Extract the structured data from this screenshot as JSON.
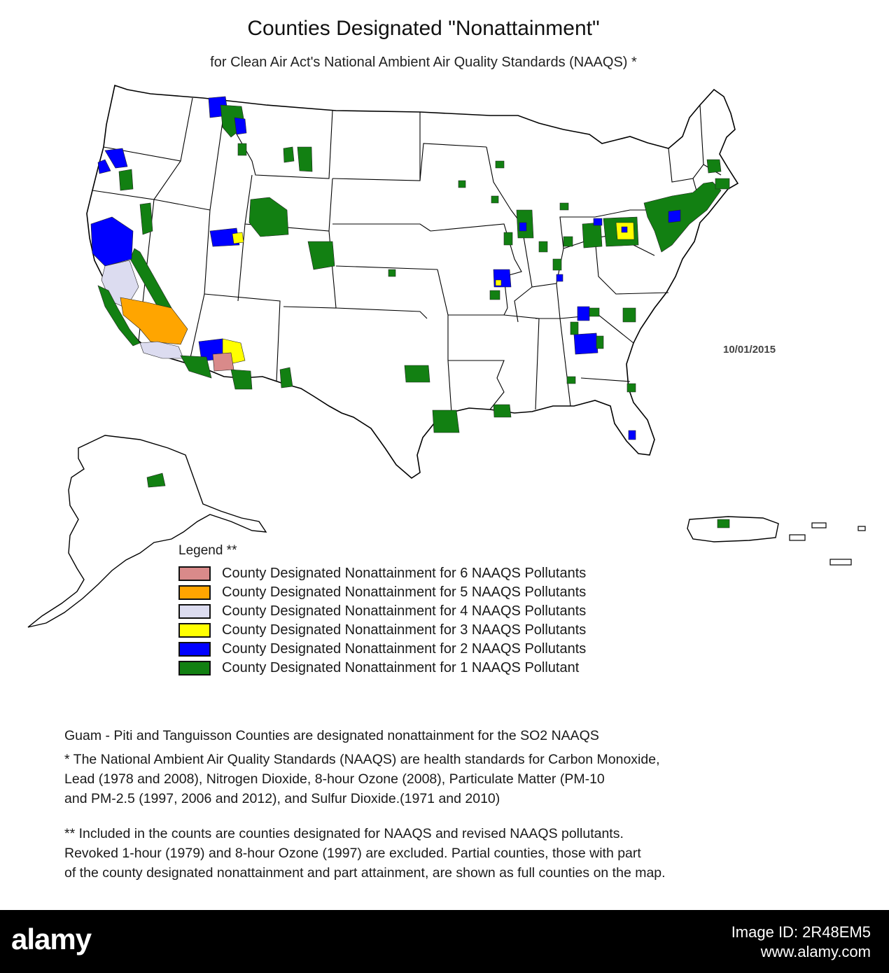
{
  "title": "Counties Designated \"Nonattainment\"",
  "subtitle": "for Clean Air Act's National Ambient Air Quality Standards (NAAQS) *",
  "date_stamp": "10/01/2015",
  "colors": {
    "six": "#d98a8a",
    "five": "#ffa500",
    "four": "#dcdcf0",
    "three": "#ffff00",
    "two": "#0000ff",
    "one": "#128012"
  },
  "legend": {
    "heading": "Legend **",
    "items": [
      {
        "label": "County Designated Nonattainment for 6 NAAQS Pollutants",
        "color": "#d98a8a"
      },
      {
        "label": "County Designated Nonattainment for 5 NAAQS Pollutants",
        "color": "#ffa500"
      },
      {
        "label": "County Designated Nonattainment for 4 NAAQS Pollutants",
        "color": "#dcdcf0"
      },
      {
        "label": "County Designated Nonattainment for 3 NAAQS Pollutants",
        "color": "#ffff00"
      },
      {
        "label": "County Designated Nonattainment for 2 NAAQS Pollutants",
        "color": "#0000ff"
      },
      {
        "label": "County Designated Nonattainment for 1 NAAQS Pollutant",
        "color": "#128012"
      }
    ]
  },
  "notes": {
    "guam": "Guam - Piti and Tanguisson Counties are designated nonattainment for the SO2 NAAQS",
    "star_lines": [
      "* The National Ambient Air Quality Standards (NAAQS) are health standards for Carbon Monoxide,",
      "Lead (1978 and 2008), Nitrogen Dioxide, 8-hour Ozone (2008), Particulate Matter (PM-10",
      "and PM-2.5 (1997, 2006 and 2012), and Sulfur Dioxide.(1971 and 2010)"
    ],
    "double_star_lines": [
      "** Included in the counts are counties designated for NAAQS and revised NAAQS pollutants.",
      "Revoked 1-hour (1979) and 8-hour Ozone (1997) are excluded. Partial counties, those with part",
      "of the county designated nonattainment and part attainment, are shown as full counties on the map."
    ]
  },
  "footer": {
    "brand": "alamy",
    "image_id_line": "Image ID: 2R48EM5",
    "site": "www.alamy.com"
  }
}
